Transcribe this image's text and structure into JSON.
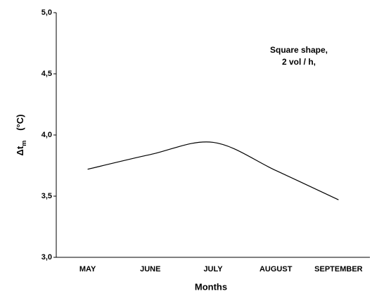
{
  "chart_data": {
    "type": "line",
    "x_label": "Months",
    "y_label": {
      "symbol": "Δt",
      "subscript": "m",
      "unit": "(°C)"
    },
    "annotation": [
      "Square shape,",
      "2 vol / h,"
    ],
    "categories": [
      "MAY",
      "JUNE",
      "JULY",
      "AUGUST",
      "SEPTEMBER"
    ],
    "series": [
      {
        "color": "#000000",
        "values": [
          3.72,
          3.84,
          3.94,
          3.71,
          3.47
        ]
      }
    ],
    "ylim": [
      3.0,
      5.0
    ],
    "yticks": [
      {
        "value": 3.0,
        "label": "3,0"
      },
      {
        "value": 3.5,
        "label": "3,5"
      },
      {
        "value": 4.0,
        "label": "4,0"
      },
      {
        "value": 4.5,
        "label": "4,5"
      },
      {
        "value": 5.0,
        "label": "5,0"
      }
    ],
    "grid": false
  }
}
